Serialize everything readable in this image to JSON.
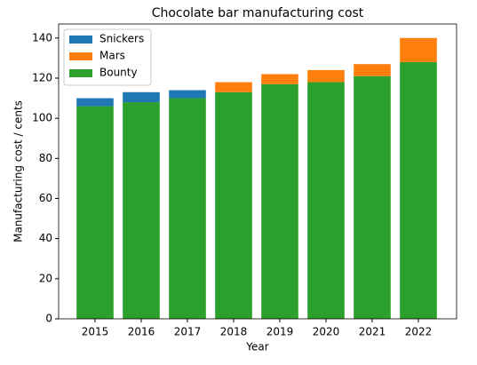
{
  "chart_data": {
    "type": "bar",
    "stacked": true,
    "title": "Chocolate bar manufacturing cost",
    "xlabel": "Year",
    "ylabel": "Manufacturing cost / cents",
    "categories": [
      "2015",
      "2016",
      "2017",
      "2018",
      "2019",
      "2020",
      "2021",
      "2022"
    ],
    "series": [
      {
        "name": "Snickers",
        "color": "#1f77b4",
        "values": [
          4,
          5,
          4,
          0,
          0,
          0,
          0,
          0
        ]
      },
      {
        "name": "Mars",
        "color": "#ff7f0e",
        "values": [
          0,
          0,
          0,
          5,
          5,
          6,
          6,
          12
        ]
      },
      {
        "name": "Bounty",
        "color": "#2ca02c",
        "values": [
          106,
          108,
          110,
          113,
          117,
          118,
          121,
          128
        ]
      }
    ],
    "ylim": [
      0,
      147
    ],
    "yticks": [
      0,
      20,
      40,
      60,
      80,
      100,
      120,
      140
    ],
    "legend": "upper left"
  }
}
